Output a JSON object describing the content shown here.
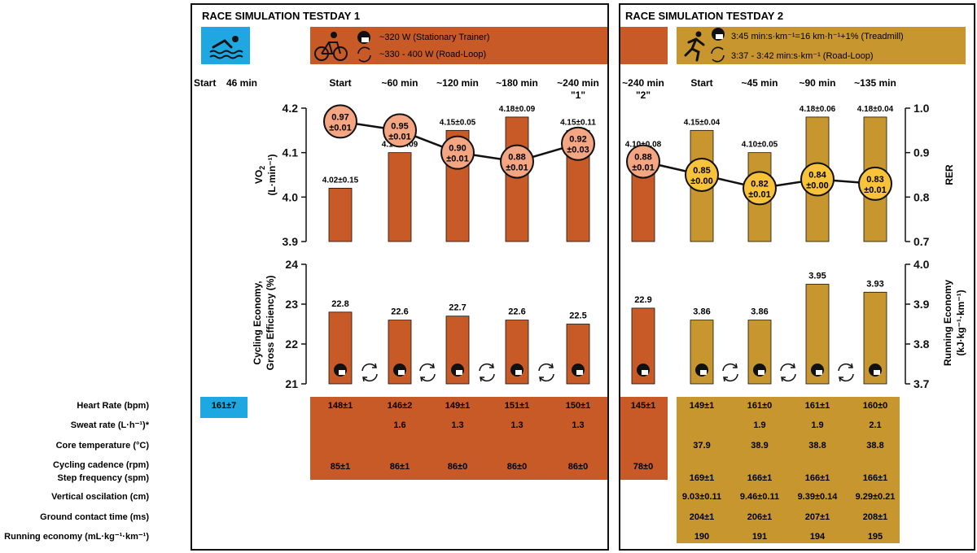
{
  "colors": {
    "cycling": "#C85A27",
    "running": "#C8962E",
    "swim": "#1EA7E1",
    "rer_cycle": "#F4A581",
    "rer_run": "#F8C23A"
  },
  "panels": {
    "day1_title": "RACE SIMULATION TESTDAY 1",
    "day2_title": "RACE SIMULATION TESTDAY 2"
  },
  "legend": {
    "cycle_line1": "~320 W (Stationary Trainer)",
    "cycle_line2": "~330 - 400 W (Road-Loop)",
    "run_line1": "3:45 min:s·km⁻¹=16 km·h⁻¹+1% (Treadmill)",
    "run_line2": "3:37 - 3:42 min:s·km⁻¹ (Road-Loop)"
  },
  "time_labels": {
    "start": "Start",
    "swim_time": "46 min",
    "d1": [
      "Start",
      "~60 min",
      "~120 min",
      "~180 min",
      "~240 min"
    ],
    "d1_sub": "\"1\"",
    "d2_cycle": "~240 min",
    "d2_cycle_sub": "\"2\"",
    "d2": [
      "Start",
      "~45 min",
      "~90 min",
      "~135 min"
    ]
  },
  "chart_data": [
    {
      "type": "bar",
      "name_ref": "vo2",
      "ylabel": "VO₂ (L·min⁻¹)",
      "ylim": [
        3.9,
        4.2
      ],
      "yticks": [
        "3.9",
        "4.0",
        "4.1",
        "4.2"
      ],
      "cycling_values": [
        4.02,
        4.1,
        4.15,
        4.18,
        4.15,
        4.1
      ],
      "cycling_labels": [
        "4.02±0.15",
        "4.10±0.09",
        "4.15±0.05",
        "4.18±0.09",
        "4.15±0.11",
        "4.10±0.08"
      ],
      "running_values": [
        4.15,
        4.1,
        4.18,
        4.18
      ],
      "running_labels": [
        "4.15±0.04",
        "4.10±0.05",
        "4.18±0.06",
        "4.18±0.04"
      ]
    },
    {
      "type": "line",
      "name_ref": "rer",
      "ylabel": "RER",
      "ylim": [
        0.7,
        1.0
      ],
      "yticks": [
        "0.7",
        "0.8",
        "0.9",
        "1.0"
      ],
      "cycling_values": [
        0.97,
        0.95,
        0.9,
        0.88,
        0.92,
        0.88
      ],
      "cycling_mean": [
        "0.97",
        "0.95",
        "0.90",
        "0.88",
        "0.92",
        "0.88"
      ],
      "cycling_sd": [
        "±0.01",
        "±0.01",
        "±0.01",
        "±0.01",
        "±0.03",
        "±0.01"
      ],
      "running_values": [
        0.85,
        0.82,
        0.84,
        0.83
      ],
      "running_mean": [
        "0.85",
        "0.82",
        "0.84",
        "0.83"
      ],
      "running_sd": [
        "±0.00",
        "±0.01",
        "±0.00",
        "±0.01"
      ]
    },
    {
      "type": "bar",
      "name_ref": "economy",
      "ylabel_left": [
        "Cycling Economy,",
        "Gross Efficiency (%)"
      ],
      "ylim_left": [
        21,
        24
      ],
      "yticks_left": [
        "21",
        "22",
        "23",
        "24"
      ],
      "ylabel_right": [
        "Running Economy",
        "(kJ·kg⁻¹·km⁻¹)"
      ],
      "ylim_right": [
        3.7,
        4.0
      ],
      "yticks_right": [
        "3.7",
        "3.8",
        "3.9",
        "4.0"
      ],
      "cycling_values": [
        22.8,
        22.6,
        22.7,
        22.6,
        22.5,
        22.9
      ],
      "cycling_labels": [
        "22.8",
        "22.6",
        "22.7",
        "22.6",
        "22.5",
        "22.9"
      ],
      "running_values": [
        3.86,
        3.86,
        3.95,
        3.93
      ],
      "running_labels": [
        "3.86",
        "3.86",
        "3.95",
        "3.93"
      ]
    }
  ],
  "table": {
    "row_labels": [
      "Heart Rate (bpm)",
      "Sweat rate (L·h⁻¹)*",
      "Core temperature (°C)",
      "Cycling cadence (rpm)",
      "Step frequency (spm)",
      "Vertical oscilation (cm)",
      "Ground contact time (ms)",
      "Running economy (mL·kg⁻¹·km⁻¹)"
    ],
    "swim_hr": "161±7",
    "d1": {
      "hr": [
        "148±1",
        "146±2",
        "149±1",
        "151±1",
        "150±1"
      ],
      "sweat": [
        "",
        "1.6",
        "1.3",
        "1.3",
        "1.3"
      ],
      "cadence": [
        "85±1",
        "86±1",
        "86±0",
        "86±0",
        "86±0"
      ]
    },
    "d2c": {
      "hr": "145±1",
      "cadence": "78±0"
    },
    "d2r": {
      "hr": [
        "149±1",
        "161±0",
        "161±1",
        "160±0"
      ],
      "sweat": [
        "",
        "1.9",
        "1.9",
        "2.1"
      ],
      "core": [
        "37.9",
        "38.9",
        "38.8",
        "38.8"
      ],
      "step": [
        "169±1",
        "166±1",
        "166±1",
        "166±1"
      ],
      "vo": [
        "9.03±0.11",
        "9.46±0.11",
        "9.39±0.14",
        "9.29±0.21"
      ],
      "gct": [
        "204±1",
        "206±1",
        "207±1",
        "208±1"
      ],
      "re": [
        "190",
        "191",
        "194",
        "195"
      ]
    }
  }
}
